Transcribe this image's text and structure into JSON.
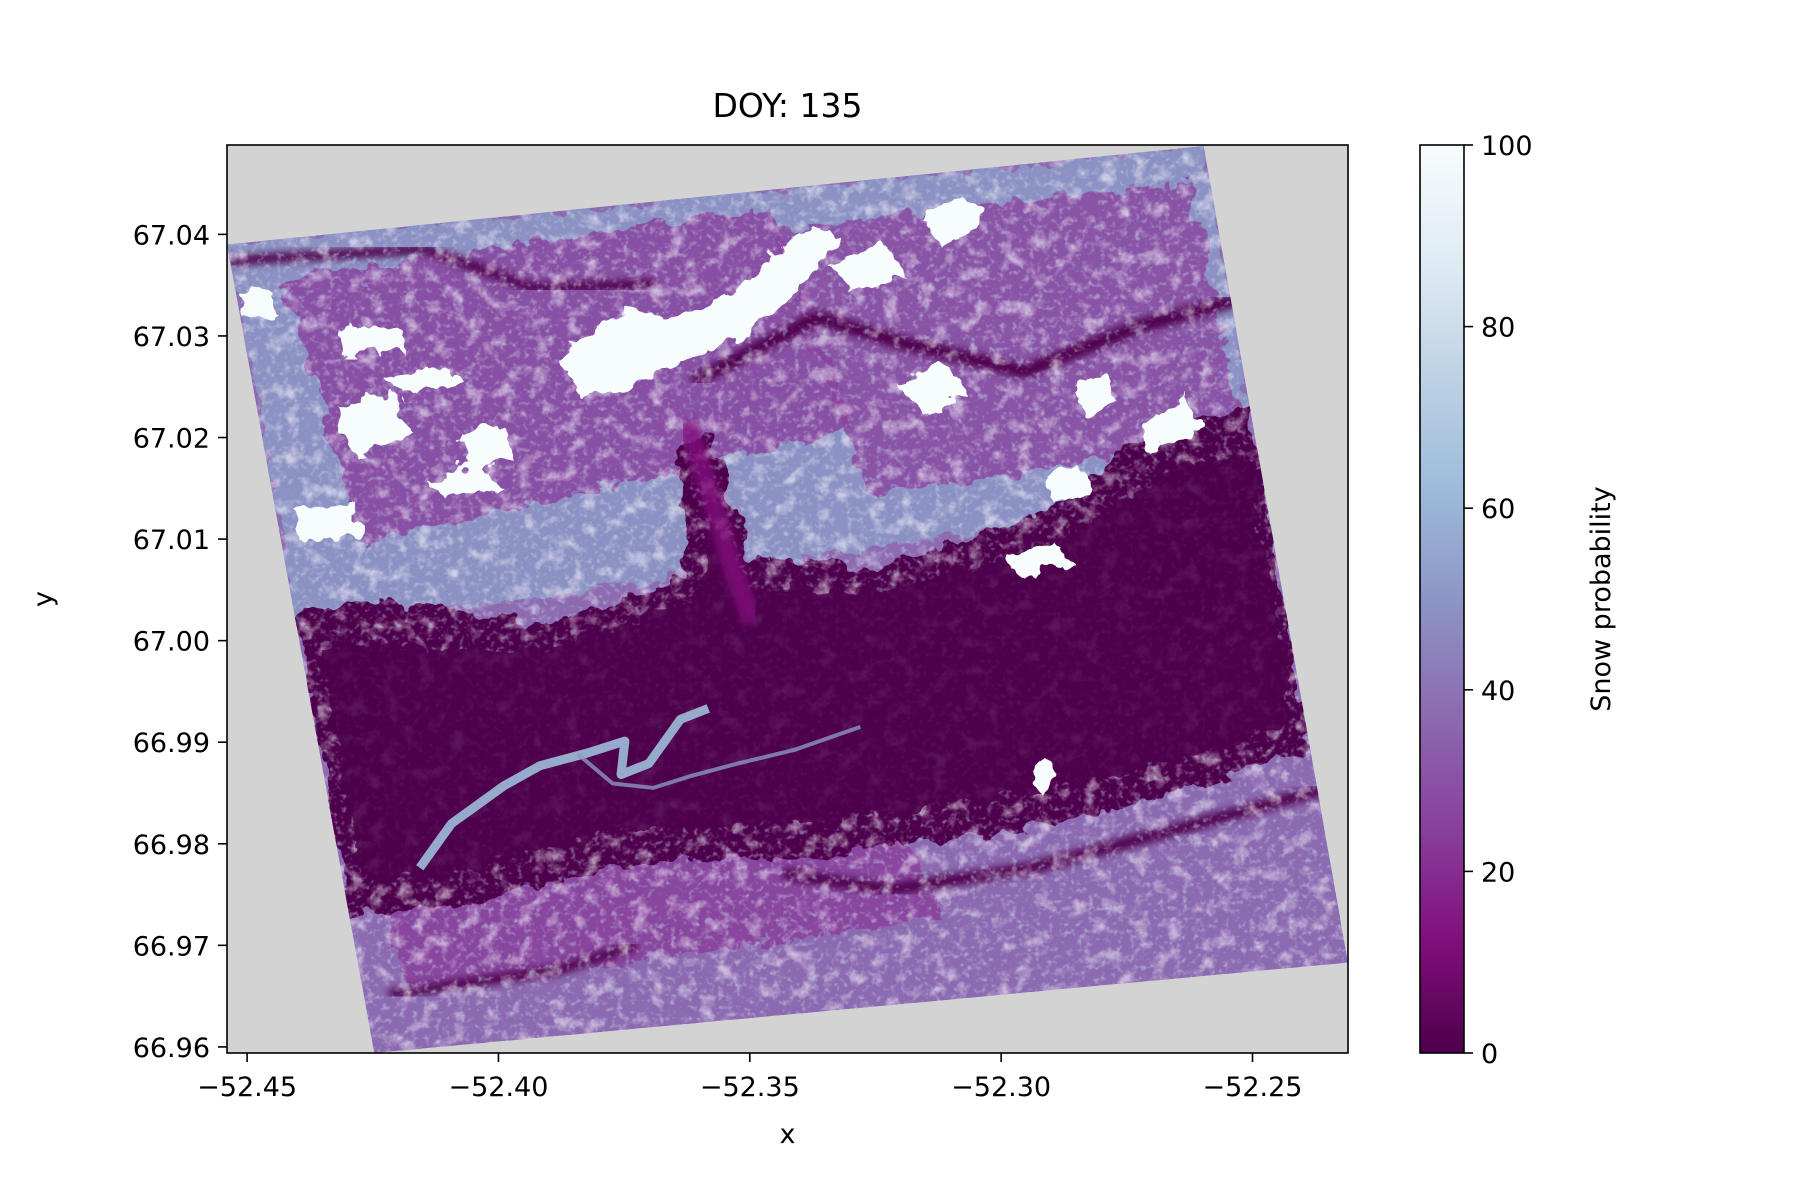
{
  "chart_data": {
    "type": "heatmap",
    "title": "DOY: 135",
    "xlabel": "x",
    "ylabel": "y",
    "xlim": [
      -52.454,
      -52.231
    ],
    "ylim": [
      66.9594,
      67.0488
    ],
    "x_ticks": [
      -52.45,
      -52.4,
      -52.35,
      -52.3,
      -52.25
    ],
    "x_tick_labels": [
      "−52.45",
      "−52.40",
      "−52.35",
      "−52.30",
      "−52.25"
    ],
    "y_ticks": [
      66.96,
      66.97,
      66.98,
      66.99,
      67.0,
      67.01,
      67.02,
      67.03,
      67.04
    ],
    "y_tick_labels": [
      "66.96",
      "66.97",
      "66.98",
      "66.99",
      "67.00",
      "67.01",
      "67.02",
      "67.03",
      "67.04"
    ],
    "colorbar": {
      "label": "Snow probability",
      "range": [
        0,
        100
      ],
      "ticks": [
        0,
        20,
        40,
        60,
        80,
        100
      ],
      "tick_labels": [
        "0",
        "20",
        "40",
        "60",
        "80",
        "100"
      ],
      "colormap": "BuPu_r",
      "colors": [
        "#4d004b",
        "#810f7c",
        "#88419d",
        "#8c6bb1",
        "#8c96c6",
        "#9ebcda",
        "#bfd3e6",
        "#e0ecf4",
        "#f7fcfd"
      ]
    },
    "nodata_color": "#d3d3d3",
    "scene_footprint_corners": [
      {
        "x": -52.454,
        "y": 67.039
      },
      {
        "x": -52.2597,
        "y": 67.0487
      },
      {
        "x": -52.231,
        "y": 66.9683
      },
      {
        "x": -52.4247,
        "y": 66.9594
      }
    ]
  }
}
